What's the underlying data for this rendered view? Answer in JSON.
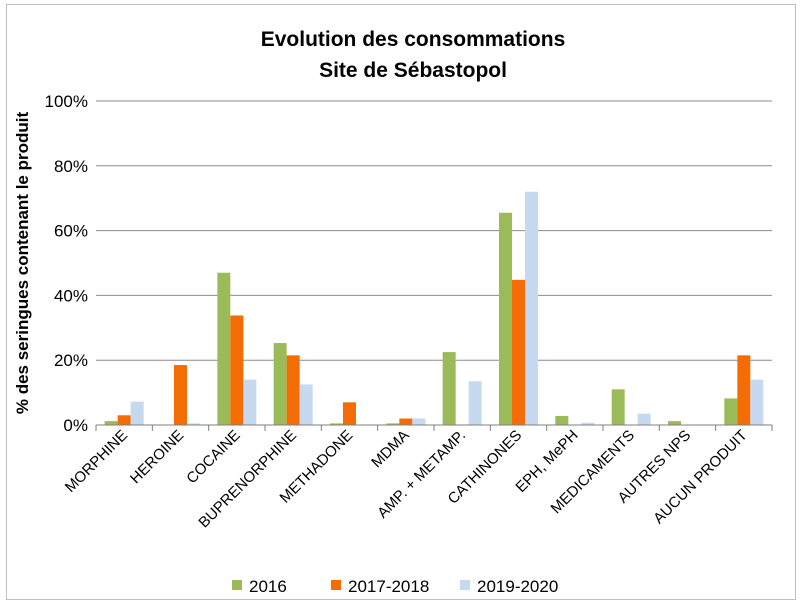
{
  "chart_data": {
    "type": "bar",
    "title": [
      "Evolution des consommations",
      "Site de Sébastopol"
    ],
    "ylabel": "% des seringues contenant le produit",
    "xlabel": "",
    "ylim": [
      0,
      100
    ],
    "yticks": [
      "0%",
      "20%",
      "40%",
      "60%",
      "80%",
      "100%"
    ],
    "grid": true,
    "legend_position": "bottom",
    "categories": [
      "MORPHINE",
      "HEROINE",
      "COCAINE",
      "BUPRENORPHINE",
      "METHADONE",
      "MDMA",
      "AMP. + METAMP.",
      "CATHINONES",
      "EPH, MePH",
      "MEDICAMENTS",
      "AUTRES NPS",
      "AUCUN PRODUIT"
    ],
    "series": [
      {
        "name": "2016",
        "color": "#9bbb59",
        "values": [
          1.2,
          0,
          47,
          25.3,
          0.5,
          0.5,
          22.5,
          65.5,
          2.8,
          11,
          1.2,
          8.2
        ]
      },
      {
        "name": "2017-2018",
        "color": "#f46d04",
        "values": [
          3,
          18.5,
          33.8,
          21.5,
          7,
          2,
          0,
          44.8,
          0,
          0,
          0,
          21.5
        ]
      },
      {
        "name": "2019-2020",
        "color": "#c6d9f1",
        "values": [
          7.2,
          0.5,
          14,
          12.5,
          0,
          2,
          13.5,
          72,
          0.7,
          3.5,
          0,
          14
        ]
      }
    ]
  }
}
